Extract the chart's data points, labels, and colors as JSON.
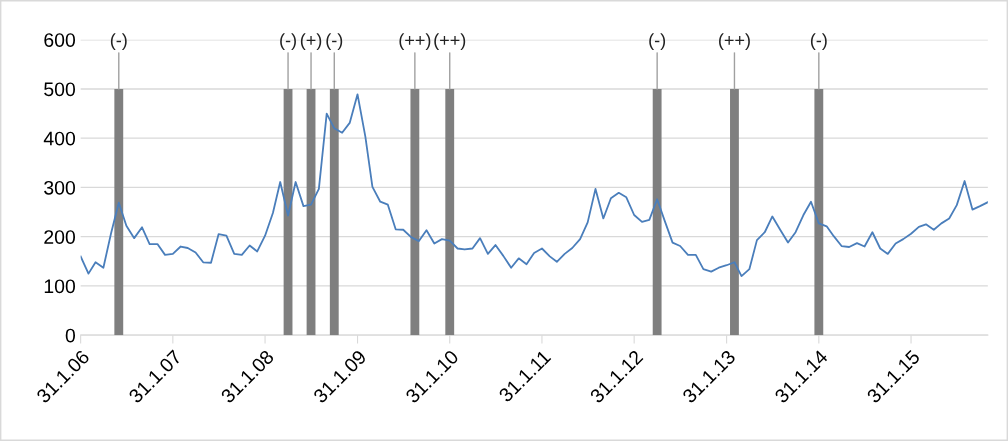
{
  "chart_data": {
    "type": "line",
    "x": [
      "2006-01",
      "2006-02",
      "2006-03",
      "2006-04",
      "2006-05",
      "2006-06",
      "2006-07",
      "2006-08",
      "2006-09",
      "2006-10",
      "2006-11",
      "2006-12",
      "2007-01",
      "2007-02",
      "2007-03",
      "2007-04",
      "2007-05",
      "2007-06",
      "2007-07",
      "2007-08",
      "2007-09",
      "2007-10",
      "2007-11",
      "2007-12",
      "2008-01",
      "2008-02",
      "2008-03",
      "2008-04",
      "2008-05",
      "2008-06",
      "2008-07",
      "2008-08",
      "2008-09",
      "2008-10",
      "2008-11",
      "2008-12",
      "2009-01",
      "2009-02",
      "2009-03",
      "2009-04",
      "2009-05",
      "2009-06",
      "2009-07",
      "2009-08",
      "2009-09",
      "2009-10",
      "2009-11",
      "2009-12",
      "2010-01",
      "2010-02",
      "2010-03",
      "2010-04",
      "2010-05",
      "2010-06",
      "2010-07",
      "2010-08",
      "2010-09",
      "2010-10",
      "2010-11",
      "2010-12",
      "2011-01",
      "2011-02",
      "2011-03",
      "2011-04",
      "2011-05",
      "2011-06",
      "2011-07",
      "2011-08",
      "2011-09",
      "2011-10",
      "2011-11",
      "2011-12",
      "2012-01",
      "2012-02",
      "2012-03",
      "2012-04",
      "2012-05",
      "2012-06",
      "2012-07",
      "2012-08",
      "2012-09",
      "2012-10",
      "2012-11",
      "2012-12",
      "2013-01",
      "2013-02",
      "2013-03",
      "2013-04",
      "2013-05",
      "2013-06",
      "2013-07",
      "2013-08",
      "2013-09",
      "2013-10",
      "2013-11",
      "2013-12",
      "2014-01",
      "2014-02",
      "2014-03",
      "2014-04",
      "2014-05",
      "2014-06",
      "2014-07",
      "2014-08",
      "2014-09",
      "2014-10",
      "2014-11",
      "2014-12",
      "2015-01",
      "2015-02",
      "2015-03",
      "2015-04",
      "2015-05",
      "2015-06",
      "2015-07",
      "2015-08",
      "2015-09",
      "2015-10",
      "2015-11"
    ],
    "series": [
      {
        "color": "#4a7ebb",
        "values": [
          160,
          125,
          148,
          137,
          206,
          269,
          222,
          197,
          219,
          185,
          185,
          163,
          165,
          180,
          177,
          168,
          148,
          147,
          205,
          202,
          165,
          163,
          182,
          170,
          202,
          248,
          311,
          243,
          311,
          262,
          265,
          297,
          450,
          420,
          411,
          431,
          489,
          403,
          301,
          271,
          265,
          215,
          214,
          199,
          191,
          213,
          186,
          195,
          192,
          176,
          174,
          176,
          197,
          165,
          183,
          161,
          137,
          156,
          144,
          167,
          176,
          160,
          149,
          165,
          177,
          195,
          229,
          297,
          237,
          278,
          289,
          280,
          244,
          230,
          234,
          276,
          232,
          188,
          181,
          163,
          163,
          134,
          129,
          137,
          142,
          148,
          120,
          134,
          193,
          209,
          241,
          214,
          188,
          209,
          244,
          271,
          227,
          221,
          201,
          181,
          179,
          187,
          180,
          209,
          176,
          165,
          186,
          195,
          206,
          220,
          225,
          214,
          227,
          237,
          264,
          313,
          255,
          262,
          270
        ]
      },
      {
        "type": "bar",
        "color": "#7f7f7f",
        "x": [
          "2006-06-01",
          "2008-04-01",
          "2008-07-01",
          "2008-10-01",
          "2009-08-16",
          "2010-01-01",
          "2012-04-01",
          "2013-02-01",
          "2014-01-01"
        ],
        "values": [
          500,
          500,
          500,
          500,
          500,
          500,
          500,
          500,
          500
        ]
      }
    ],
    "annotations": [
      {
        "text": "(-)",
        "x": "2006-06-01",
        "y": 500
      },
      {
        "text": "(-)",
        "x": "2008-04-01",
        "y": 500
      },
      {
        "text": "(+)",
        "x": "2008-07-01",
        "y": 500
      },
      {
        "text": "(-)",
        "x": "2008-10-01",
        "y": 500
      },
      {
        "text": "(++)",
        "x": "2009-08-16",
        "y": 500
      },
      {
        "text": "(++)",
        "x": "2010-01-01",
        "y": 500
      },
      {
        "text": "(-)",
        "x": "2012-04-01",
        "y": 500
      },
      {
        "text": "(++)",
        "x": "2013-02-01",
        "y": 500
      },
      {
        "text": "(-)",
        "x": "2014-01-01",
        "y": 500
      }
    ],
    "xlim": [
      "2006-01",
      "2015-11"
    ],
    "xticks": [
      {
        "value": "2006-01",
        "label": "31.1.06"
      },
      {
        "value": "2007-01",
        "label": "31.1.07"
      },
      {
        "value": "2008-01",
        "label": "31.1.08"
      },
      {
        "value": "2009-01",
        "label": "31.1.09"
      },
      {
        "value": "2010-01",
        "label": "31.1.10"
      },
      {
        "value": "2011-01",
        "label": "31.1.11"
      },
      {
        "value": "2012-01",
        "label": "31.1.12"
      },
      {
        "value": "2013-01",
        "label": "31.1.13"
      },
      {
        "value": "2014-01",
        "label": "31.1.14"
      },
      {
        "value": "2015-01",
        "label": "31.1.15"
      }
    ],
    "ylim": [
      0,
      600
    ],
    "yticks": [
      0,
      100,
      200,
      300,
      400,
      500,
      600
    ],
    "grid": "y",
    "legend": false
  }
}
